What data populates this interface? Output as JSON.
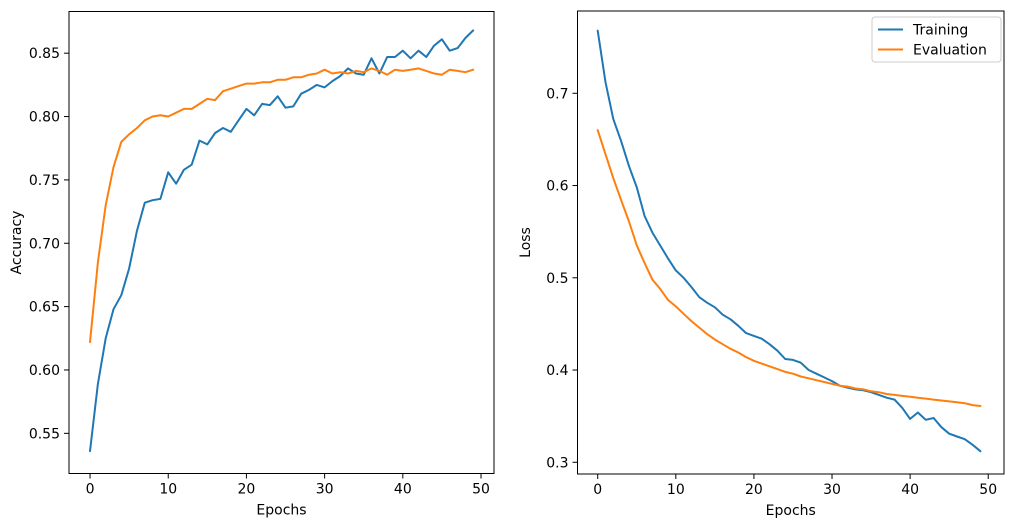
{
  "figure": {
    "background": "#ffffff"
  },
  "colors": {
    "training": "#1f77b4",
    "evaluation": "#ff7f0e",
    "spine": "#000000",
    "text": "#000000",
    "legend_border": "#cccccc",
    "legend_background": "#ffffff"
  },
  "legend": {
    "position": "upper right",
    "items": [
      {
        "label": "Training",
        "color": "#1f77b4"
      },
      {
        "label": "Evaluation",
        "color": "#ff7f0e"
      }
    ]
  },
  "chart_data": [
    {
      "id": "accuracy",
      "type": "line",
      "title": "",
      "xlabel": "Epochs",
      "ylabel": "Accuracy",
      "x": [
        0,
        1,
        2,
        3,
        4,
        5,
        6,
        7,
        8,
        9,
        10,
        11,
        12,
        13,
        14,
        15,
        16,
        17,
        18,
        19,
        20,
        21,
        22,
        23,
        24,
        25,
        26,
        27,
        28,
        29,
        30,
        31,
        32,
        33,
        34,
        35,
        36,
        37,
        38,
        39,
        40,
        41,
        42,
        43,
        44,
        45,
        46,
        47,
        48,
        49
      ],
      "series": [
        {
          "name": "Training",
          "color_key": "training",
          "values": [
            0.536,
            0.589,
            0.625,
            0.648,
            0.659,
            0.68,
            0.71,
            0.732,
            0.734,
            0.735,
            0.756,
            0.747,
            0.758,
            0.762,
            0.781,
            0.778,
            0.787,
            0.791,
            0.788,
            0.797,
            0.806,
            0.801,
            0.81,
            0.809,
            0.816,
            0.807,
            0.808,
            0.818,
            0.821,
            0.825,
            0.823,
            0.828,
            0.832,
            0.838,
            0.834,
            0.833,
            0.846,
            0.834,
            0.847,
            0.847,
            0.852,
            0.846,
            0.852,
            0.847,
            0.856,
            0.861,
            0.852,
            0.854,
            0.862,
            0.868
          ]
        },
        {
          "name": "Evaluation",
          "color_key": "evaluation",
          "values": [
            0.622,
            0.685,
            0.73,
            0.76,
            0.78,
            0.786,
            0.791,
            0.797,
            0.8,
            0.801,
            0.8,
            0.803,
            0.806,
            0.806,
            0.81,
            0.814,
            0.813,
            0.82,
            0.822,
            0.824,
            0.826,
            0.826,
            0.827,
            0.827,
            0.829,
            0.829,
            0.831,
            0.831,
            0.833,
            0.834,
            0.837,
            0.834,
            0.835,
            0.834,
            0.836,
            0.835,
            0.838,
            0.836,
            0.833,
            0.837,
            0.836,
            0.837,
            0.838,
            0.836,
            0.834,
            0.833,
            0.837,
            0.836,
            0.835,
            0.837
          ]
        }
      ],
      "xticks": [
        0,
        10,
        20,
        30,
        40,
        50
      ],
      "yticks": [
        0.55,
        0.6,
        0.65,
        0.7,
        0.75,
        0.8,
        0.85
      ],
      "ytick_decimals": 2,
      "xlim": [
        -2.69,
        51.66
      ],
      "ylim": [
        0.5183,
        0.8829
      ],
      "grid": false,
      "legend": false
    },
    {
      "id": "loss",
      "type": "line",
      "title": "",
      "xlabel": "Epochs",
      "ylabel": "Loss",
      "x": [
        0,
        1,
        2,
        3,
        4,
        5,
        6,
        7,
        8,
        9,
        10,
        11,
        12,
        13,
        14,
        15,
        16,
        17,
        18,
        19,
        20,
        21,
        22,
        23,
        24,
        25,
        26,
        27,
        28,
        29,
        30,
        31,
        32,
        33,
        34,
        35,
        36,
        37,
        38,
        39,
        40,
        41,
        42,
        43,
        44,
        45,
        46,
        47,
        48,
        49
      ],
      "series": [
        {
          "name": "Training",
          "color_key": "training",
          "values": [
            0.768,
            0.712,
            0.672,
            0.648,
            0.621,
            0.598,
            0.567,
            0.549,
            0.535,
            0.521,
            0.508,
            0.5,
            0.49,
            0.479,
            0.473,
            0.468,
            0.46,
            0.455,
            0.448,
            0.44,
            0.437,
            0.434,
            0.428,
            0.421,
            0.412,
            0.411,
            0.408,
            0.4,
            0.396,
            0.392,
            0.388,
            0.383,
            0.381,
            0.379,
            0.378,
            0.376,
            0.373,
            0.37,
            0.368,
            0.359,
            0.347,
            0.354,
            0.346,
            0.348,
            0.338,
            0.331,
            0.328,
            0.325,
            0.319,
            0.312
          ]
        },
        {
          "name": "Evaluation",
          "color_key": "evaluation",
          "values": [
            0.66,
            0.634,
            0.608,
            0.584,
            0.561,
            0.535,
            0.516,
            0.498,
            0.488,
            0.476,
            0.469,
            0.461,
            0.453,
            0.446,
            0.439,
            0.433,
            0.428,
            0.423,
            0.419,
            0.414,
            0.41,
            0.407,
            0.404,
            0.401,
            0.398,
            0.396,
            0.393,
            0.391,
            0.389,
            0.387,
            0.385,
            0.383,
            0.382,
            0.38,
            0.379,
            0.377,
            0.376,
            0.374,
            0.373,
            0.372,
            0.371,
            0.37,
            0.369,
            0.368,
            0.367,
            0.366,
            0.365,
            0.364,
            0.362,
            0.361
          ]
        }
      ],
      "xticks": [
        0,
        10,
        20,
        30,
        40,
        50
      ],
      "yticks": [
        0.3,
        0.4,
        0.5,
        0.6,
        0.7
      ],
      "ytick_decimals": 1,
      "xlim": [
        -2.59,
        52.02
      ],
      "ylim": [
        0.2873,
        0.7892
      ],
      "grid": false,
      "legend": true
    }
  ]
}
